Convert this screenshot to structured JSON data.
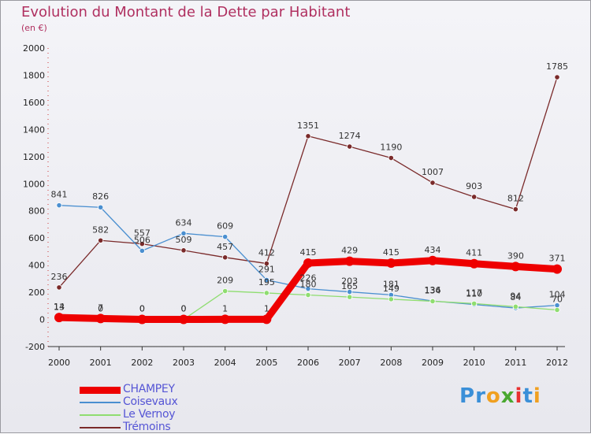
{
  "title": "Evolution du Montant de la Dette par Habitant",
  "subtitle": "(en €)",
  "logo": {
    "text": "Proxiti",
    "letters": [
      {
        "ch": "P",
        "color": "#3a8fd8"
      },
      {
        "ch": "r",
        "color": "#3a8fd8"
      },
      {
        "ch": "o",
        "color": "#f0a020"
      },
      {
        "ch": "x",
        "color": "#4aa830"
      },
      {
        "ch": "i",
        "color": "#e83030"
      },
      {
        "ch": "t",
        "color": "#3a8fd8"
      },
      {
        "ch": "i",
        "color": "#f0a020"
      }
    ]
  },
  "chart_data": {
    "type": "line",
    "title": "Evolution du Montant de la Dette par Habitant",
    "ylabel": "(en €)",
    "xlabel": "",
    "x": [
      "2000",
      "2001",
      "2002",
      "2003",
      "2004",
      "2005",
      "2006",
      "2007",
      "2008",
      "2009",
      "2010",
      "2011",
      "2012"
    ],
    "ylim": [
      -200,
      2000
    ],
    "yticks": [
      -200,
      0,
      200,
      400,
      600,
      800,
      1000,
      1200,
      1400,
      1600,
      1800,
      2000
    ],
    "grid": false,
    "legend_position": "bottom-left",
    "series": [
      {
        "name": "CHAMPEY",
        "color": "#ee0000",
        "values": [
          14,
          7,
          0,
          0,
          1,
          1,
          415,
          429,
          415,
          434,
          411,
          390,
          371
        ],
        "labels": [
          "14",
          "7",
          "0",
          "0",
          "1",
          "1",
          "415",
          "429",
          "415",
          "434",
          "411",
          "390",
          "371"
        ]
      },
      {
        "name": "Coisevaux",
        "color": "#4a8fd0",
        "values": [
          841,
          826,
          506,
          634,
          609,
          291,
          226,
          203,
          181,
          136,
          110,
          84,
          104
        ],
        "labels": [
          "841",
          "826",
          "506",
          "634",
          "609",
          "291",
          "226",
          "203",
          "181",
          "136",
          "110",
          "84",
          "104"
        ]
      },
      {
        "name": "Le Vernoy",
        "color": "#8fdd70",
        "values": [
          13,
          0,
          0,
          0,
          209,
          195,
          180,
          165,
          149,
          134,
          117,
          94,
          70
        ],
        "labels": [
          "13",
          "0",
          "0",
          "0",
          "209",
          "195",
          "180",
          "165",
          "149",
          "134",
          "117",
          "94",
          "70"
        ]
      },
      {
        "name": "Trémoins",
        "color": "#7a2a2a",
        "values": [
          236,
          582,
          557,
          509,
          457,
          412,
          1351,
          1274,
          1190,
          1007,
          903,
          812,
          1785
        ],
        "labels": [
          "236",
          "582",
          "557",
          "509",
          "457",
          "412",
          "1351",
          "1274",
          "1190",
          "1007",
          "903",
          "812",
          "1785"
        ]
      }
    ]
  }
}
